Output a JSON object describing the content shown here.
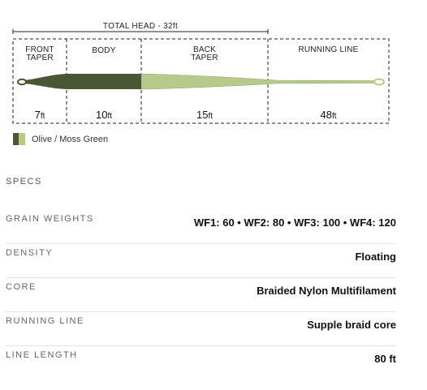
{
  "diagram": {
    "total_head_label": "TOTAL HEAD - 32ft",
    "segments": [
      {
        "label_lines": [
          "FRONT",
          "TAPER"
        ],
        "value": "7",
        "unit": "ft"
      },
      {
        "label_lines": [
          "BODY"
        ],
        "value": "10",
        "unit": "ft"
      },
      {
        "label_lines": [
          "BACK",
          "TAPER"
        ],
        "value": "15",
        "unit": "ft"
      },
      {
        "label_lines": [
          "RUNNING LINE"
        ],
        "value": "48",
        "unit": "ft"
      }
    ],
    "line_colors": {
      "dark": "#4b5634",
      "light": "#b8c98c",
      "outline": "#9aab6c"
    }
  },
  "legend": {
    "label": "Olive / Moss Green",
    "swatch_colors": [
      "#4b5634",
      "#b8c98c"
    ]
  },
  "specs": {
    "title": "SPECS",
    "rows": [
      {
        "label": "GRAIN WEIGHTS",
        "value": "WF1: 60 • WF2: 80 • WF3: 100 • WF4: 120"
      },
      {
        "label": "DENSITY",
        "value": "Floating"
      },
      {
        "label": "CORE",
        "value": "Braided Nylon Multifilament"
      },
      {
        "label": "RUNNING LINE",
        "value": "Supple braid core"
      },
      {
        "label": "LINE LENGTH",
        "value": "80 ft"
      }
    ]
  }
}
